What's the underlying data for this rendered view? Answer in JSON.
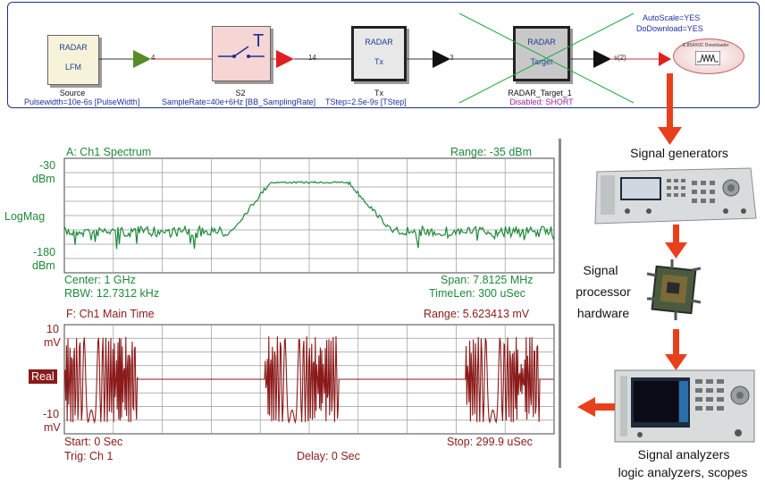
{
  "schematic": {
    "source": {
      "line1": "RADAR",
      "line2": "LFM",
      "name": "Source",
      "param": "Pulsewidth=10e-6s [PulseWidth]"
    },
    "s2": {
      "name": "S2",
      "param": "SampleRate=40e+6Hz [BB_SamplingRate]"
    },
    "tx": {
      "line1": "RADAR",
      "line2": "Tx",
      "name": "Tx",
      "param": "TStep=2.5e-9s [TStep]"
    },
    "target": {
      "line1": "RADAR",
      "line2": "Target",
      "name": "RADAR_Target_1",
      "status": "Disabled: SHORT"
    },
    "wires": [
      "4",
      "14",
      "3",
      "s(2)"
    ],
    "downloader": {
      "label": "E.8S4X0C Downloader",
      "autoscale": "AutoScale=YES",
      "dodownload": "DoDownload=YES"
    }
  },
  "spectrum": {
    "title": "A: Ch1 Spectrum",
    "range": "Range: -35 dBm",
    "y_top": "-30",
    "y_top_unit": "dBm",
    "y_mid": "LogMag",
    "y_bot": "-180",
    "y_bot_unit": "dBm",
    "center": "Center: 1 GHz",
    "span": "Span: 7.8125 MHz",
    "rbw": "RBW: 12.7312 kHz",
    "timelen": "TimeLen: 300 uSec",
    "color": "#1e8a3a"
  },
  "timeplot": {
    "title": "F: Ch1 Main Time",
    "range": "Range: 5.623413 mV",
    "y_top": "10",
    "y_top_unit": "mV",
    "y_mid": "Real",
    "y_bot": "-10",
    "y_bot_unit": "mV",
    "start": "Start: 0  Sec",
    "stop": "Stop: 299.9 uSec",
    "trig": "Trig: Ch 1",
    "delay": "Delay: 0  Sec",
    "color": "#8b1a1a"
  },
  "right": {
    "signal_generators": "Signal generators",
    "processor": [
      "Signal",
      "processor",
      "hardware"
    ],
    "analyzers": "Signal analyzers",
    "analyzers2": "logic analyzers, scopes"
  },
  "colors": {
    "arrow": "#e8401c",
    "border": "#1f2f8f"
  }
}
